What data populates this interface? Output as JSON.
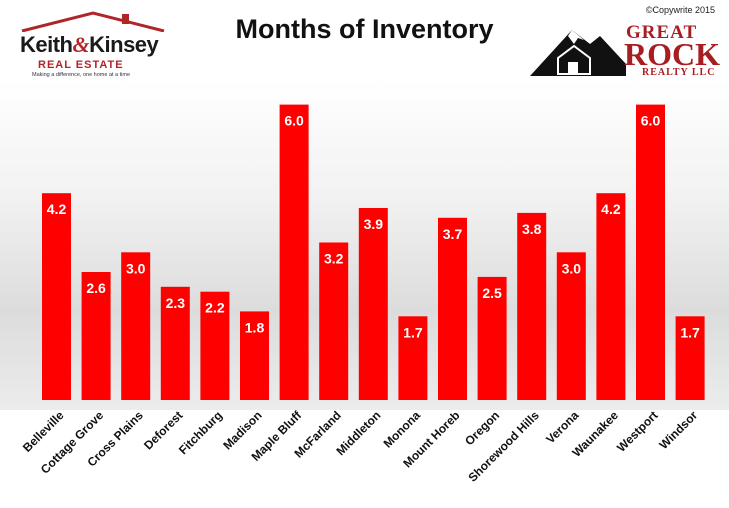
{
  "copyright": "©Copywrite 2015",
  "logo_left": {
    "name_first": "Keith",
    "name_amp": "&",
    "name_last": "Kinsey",
    "subtitle": "REAL ESTATE",
    "tagline": "Making a difference, one home at a time"
  },
  "logo_right": {
    "line1": "GREAT",
    "line2": "ROCK",
    "line3": "REALTY LLC"
  },
  "chart_data": {
    "type": "bar",
    "title": "Months of Inventory",
    "xlabel": "",
    "ylabel": "",
    "ylim": [
      0,
      6.5
    ],
    "grid": false,
    "legend": "none",
    "bar_color": "#ff0000",
    "categories": [
      "Belleville",
      "Cottage Grove",
      "Cross Plains",
      "Deforest",
      "Fitchburg",
      "Madison",
      "Maple Bluff",
      "McFarland",
      "Middleton",
      "Monona",
      "Mount Horeb",
      "Oregon",
      "Shorewood Hills",
      "Verona",
      "Waunakee",
      "Westport",
      "Windsor"
    ],
    "values": [
      4.2,
      2.6,
      3.0,
      2.3,
      2.2,
      1.8,
      6.0,
      3.2,
      3.9,
      1.7,
      3.7,
      2.5,
      3.8,
      3.0,
      4.2,
      6.0,
      1.7
    ],
    "data_labels": [
      "4.2",
      "2.6",
      "3.0",
      "2.3",
      "2.2",
      "1.8",
      "6.0",
      "3.2",
      "3.9",
      "1.7",
      "3.7",
      "2.5",
      "3.8",
      "3.0",
      "4.2",
      "6.0",
      "1.7"
    ]
  }
}
